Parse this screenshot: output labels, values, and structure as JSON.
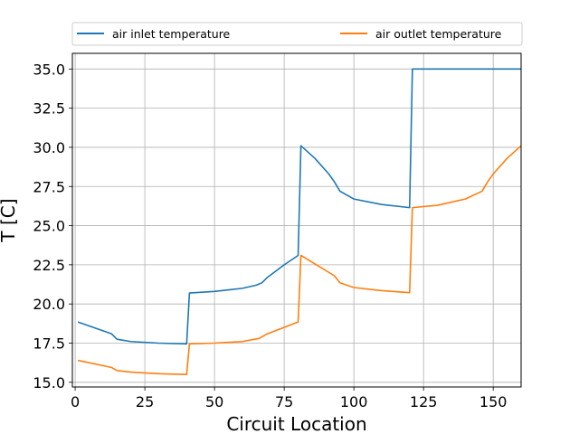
{
  "chart_data": {
    "type": "line",
    "xlabel": "Circuit Location",
    "ylabel": "T [C]",
    "xlim": [
      -1,
      160
    ],
    "ylim": [
      14.7,
      36.0
    ],
    "xticks": [
      0,
      25,
      50,
      75,
      100,
      125,
      150
    ],
    "yticks": [
      15.0,
      17.5,
      20.0,
      22.5,
      25.0,
      27.5,
      30.0,
      32.5,
      35.0
    ],
    "xtick_labels": [
      "0",
      "25",
      "50",
      "75",
      "100",
      "125",
      "150"
    ],
    "ytick_labels": [
      "15.0",
      "17.5",
      "20.0",
      "22.5",
      "25.0",
      "27.5",
      "30.0",
      "32.5",
      "35.0"
    ],
    "grid": true,
    "legend": {
      "placement": "top, above plot",
      "columns": 2
    },
    "series": [
      {
        "name": "air inlet temperature",
        "color": "#1f77b4",
        "points": [
          [
            1,
            18.85
          ],
          [
            13,
            18.1
          ],
          [
            15,
            17.75
          ],
          [
            20,
            17.6
          ],
          [
            30,
            17.5
          ],
          [
            40,
            17.45
          ],
          [
            41,
            20.7
          ],
          [
            50,
            20.8
          ],
          [
            60,
            21.0
          ],
          [
            65,
            21.2
          ],
          [
            67,
            21.35
          ],
          [
            69,
            21.7
          ],
          [
            75,
            22.5
          ],
          [
            80,
            23.1
          ],
          [
            81,
            30.1
          ],
          [
            86,
            29.3
          ],
          [
            91,
            28.3
          ],
          [
            93,
            27.8
          ],
          [
            95,
            27.2
          ],
          [
            100,
            26.7
          ],
          [
            110,
            26.35
          ],
          [
            120,
            26.15
          ],
          [
            121,
            35.0
          ],
          [
            160,
            35.0
          ]
        ]
      },
      {
        "name": "air outlet temperature",
        "color": "#ff7f0e",
        "points": [
          [
            1,
            16.4
          ],
          [
            13,
            15.95
          ],
          [
            15,
            15.75
          ],
          [
            20,
            15.65
          ],
          [
            30,
            15.55
          ],
          [
            40,
            15.5
          ],
          [
            41,
            17.45
          ],
          [
            50,
            17.5
          ],
          [
            60,
            17.6
          ],
          [
            66,
            17.8
          ],
          [
            69,
            18.1
          ],
          [
            80,
            18.85
          ],
          [
            81,
            23.1
          ],
          [
            87,
            22.45
          ],
          [
            93,
            21.8
          ],
          [
            95,
            21.35
          ],
          [
            100,
            21.05
          ],
          [
            110,
            20.85
          ],
          [
            120,
            20.72
          ],
          [
            121,
            26.15
          ],
          [
            130,
            26.3
          ],
          [
            140,
            26.7
          ],
          [
            146,
            27.2
          ],
          [
            148,
            27.8
          ],
          [
            150,
            28.3
          ],
          [
            155,
            29.3
          ],
          [
            160,
            30.1
          ]
        ]
      }
    ]
  }
}
